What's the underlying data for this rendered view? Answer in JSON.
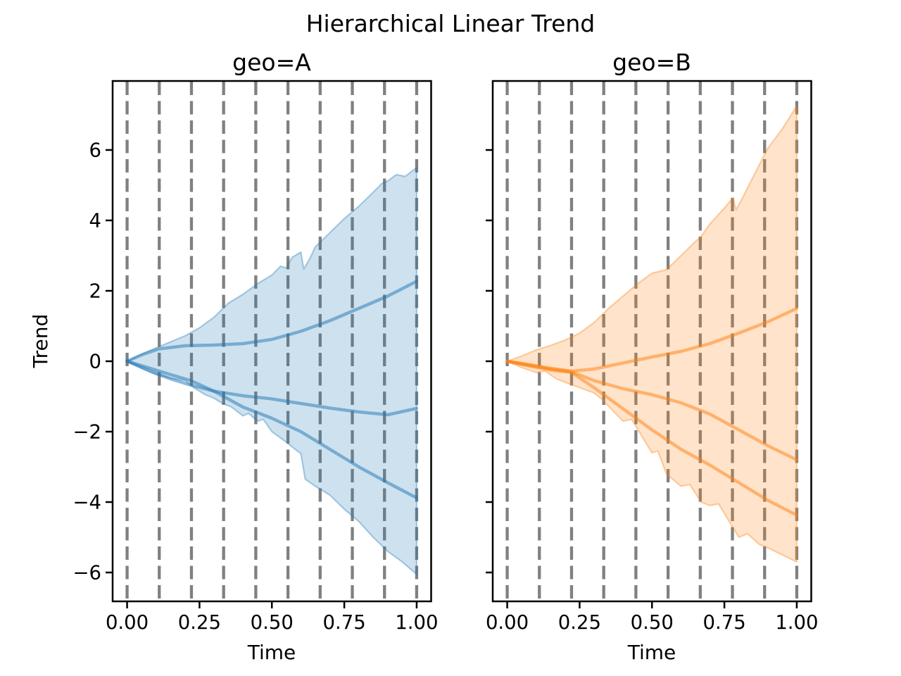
{
  "figure": {
    "suptitle": "Hierarchical Linear Trend",
    "background": "#ffffff",
    "gridline_color": "#808080",
    "text_color": "#000000"
  },
  "chart_data": [
    {
      "type": "area",
      "title": "geo=A",
      "xlabel": "Time",
      "ylabel": "Trend",
      "color": "#1f77b4",
      "xlim": [
        -0.05,
        1.05
      ],
      "ylim": [
        -6.82,
        7.96
      ],
      "xticks": [
        0.0,
        0.25,
        0.5,
        0.75,
        1.0
      ],
      "xtick_labels": [
        "0.00",
        "0.25",
        "0.50",
        "0.75",
        "1.00"
      ],
      "yticks": [
        -6,
        -4,
        -2,
        0,
        2,
        4,
        6
      ],
      "ytick_labels": [
        "−6",
        "−4",
        "−2",
        "0",
        "2",
        "4",
        "6"
      ],
      "show_ytick_labels": true,
      "grid": true,
      "changepoints": [
        0.0,
        0.1111,
        0.2222,
        0.3333,
        0.4444,
        0.5556,
        0.6667,
        0.7778,
        0.8889,
        1.0
      ],
      "band": {
        "upper": [
          [
            0,
            0
          ],
          [
            0.05,
            0.2
          ],
          [
            0.1,
            0.38
          ],
          [
            0.15,
            0.55
          ],
          [
            0.2,
            0.72
          ],
          [
            0.25,
            0.95
          ],
          [
            0.3,
            1.25
          ],
          [
            0.35,
            1.65
          ],
          [
            0.4,
            1.9
          ],
          [
            0.45,
            2.2
          ],
          [
            0.5,
            2.45
          ],
          [
            0.53,
            2.7
          ],
          [
            0.55,
            2.65
          ],
          [
            0.57,
            2.95
          ],
          [
            0.6,
            3.1
          ],
          [
            0.61,
            2.62
          ],
          [
            0.63,
            2.9
          ],
          [
            0.65,
            3.25
          ],
          [
            0.7,
            3.65
          ],
          [
            0.75,
            4.05
          ],
          [
            0.8,
            4.4
          ],
          [
            0.85,
            4.8
          ],
          [
            0.88,
            5.05
          ],
          [
            0.9,
            5.12
          ],
          [
            0.93,
            5.3
          ],
          [
            0.96,
            5.25
          ],
          [
            1,
            5.5
          ]
        ],
        "lower": [
          [
            0,
            0
          ],
          [
            0.05,
            -0.2
          ],
          [
            0.1,
            -0.38
          ],
          [
            0.15,
            -0.48
          ],
          [
            0.2,
            -0.55
          ],
          [
            0.23,
            -0.75
          ],
          [
            0.27,
            -0.95
          ],
          [
            0.3,
            -1.05
          ],
          [
            0.33,
            -1.2
          ],
          [
            0.36,
            -1.3
          ],
          [
            0.4,
            -1.55
          ],
          [
            0.42,
            -1.48
          ],
          [
            0.45,
            -1.7
          ],
          [
            0.47,
            -1.65
          ],
          [
            0.5,
            -2.0
          ],
          [
            0.55,
            -2.3
          ],
          [
            0.58,
            -2.5
          ],
          [
            0.6,
            -2.62
          ],
          [
            0.615,
            -3.35
          ],
          [
            0.65,
            -3.55
          ],
          [
            0.7,
            -3.8
          ],
          [
            0.75,
            -4.2
          ],
          [
            0.8,
            -4.55
          ],
          [
            0.85,
            -5.0
          ],
          [
            0.9,
            -5.4
          ],
          [
            0.95,
            -5.7
          ],
          [
            1,
            -6.05
          ]
        ]
      },
      "lines": [
        [
          [
            0,
            0
          ],
          [
            0.05,
            0.18
          ],
          [
            0.11,
            0.35
          ],
          [
            0.2,
            0.44
          ],
          [
            0.3,
            0.46
          ],
          [
            0.4,
            0.5
          ],
          [
            0.5,
            0.62
          ],
          [
            0.6,
            0.85
          ],
          [
            0.7,
            1.15
          ],
          [
            0.8,
            1.5
          ],
          [
            0.9,
            1.85
          ],
          [
            1,
            2.27
          ]
        ],
        [
          [
            0,
            0
          ],
          [
            0.08,
            -0.28
          ],
          [
            0.15,
            -0.5
          ],
          [
            0.22,
            -0.68
          ],
          [
            0.3,
            -0.85
          ],
          [
            0.4,
            -0.98
          ],
          [
            0.5,
            -1.07
          ],
          [
            0.6,
            -1.2
          ],
          [
            0.7,
            -1.33
          ],
          [
            0.8,
            -1.44
          ],
          [
            0.9,
            -1.52
          ],
          [
            1,
            -1.34
          ]
        ],
        [
          [
            0,
            0
          ],
          [
            0.08,
            -0.2
          ],
          [
            0.15,
            -0.38
          ],
          [
            0.22,
            -0.55
          ],
          [
            0.3,
            -0.85
          ],
          [
            0.4,
            -1.3
          ],
          [
            0.5,
            -1.62
          ],
          [
            0.6,
            -2.0
          ],
          [
            0.7,
            -2.5
          ],
          [
            0.8,
            -3.0
          ],
          [
            0.9,
            -3.45
          ],
          [
            1,
            -3.88
          ]
        ]
      ]
    },
    {
      "type": "area",
      "title": "geo=B",
      "xlabel": "Time",
      "ylabel": "",
      "color": "#ff7f0e",
      "xlim": [
        -0.05,
        1.05
      ],
      "ylim": [
        -6.82,
        7.96
      ],
      "xticks": [
        0.0,
        0.25,
        0.5,
        0.75,
        1.0
      ],
      "xtick_labels": [
        "0.00",
        "0.25",
        "0.50",
        "0.75",
        "1.00"
      ],
      "yticks": [
        -6,
        -4,
        -2,
        0,
        2,
        4,
        6
      ],
      "ytick_labels": [],
      "show_ytick_labels": false,
      "grid": true,
      "changepoints": [
        0.0,
        0.1111,
        0.2222,
        0.3333,
        0.4444,
        0.5556,
        0.6667,
        0.7778,
        0.8889,
        1.0
      ],
      "band": {
        "upper": [
          [
            0,
            0
          ],
          [
            0.05,
            0.15
          ],
          [
            0.1,
            0.32
          ],
          [
            0.15,
            0.45
          ],
          [
            0.2,
            0.6
          ],
          [
            0.25,
            0.8
          ],
          [
            0.3,
            1.1
          ],
          [
            0.35,
            1.5
          ],
          [
            0.4,
            1.85
          ],
          [
            0.45,
            2.2
          ],
          [
            0.5,
            2.5
          ],
          [
            0.55,
            2.6
          ],
          [
            0.6,
            3.0
          ],
          [
            0.65,
            3.4
          ],
          [
            0.67,
            3.55
          ],
          [
            0.7,
            3.9
          ],
          [
            0.75,
            4.35
          ],
          [
            0.78,
            4.65
          ],
          [
            0.79,
            4.3
          ],
          [
            0.81,
            4.6
          ],
          [
            0.85,
            5.25
          ],
          [
            0.9,
            6.05
          ],
          [
            0.95,
            6.6
          ],
          [
            1,
            7.25
          ]
        ],
        "lower": [
          [
            0,
            0
          ],
          [
            0.05,
            -0.18
          ],
          [
            0.1,
            -0.32
          ],
          [
            0.13,
            -0.28
          ],
          [
            0.17,
            -0.5
          ],
          [
            0.2,
            -0.6
          ],
          [
            0.25,
            -0.75
          ],
          [
            0.3,
            -0.9
          ],
          [
            0.33,
            -1.1
          ],
          [
            0.37,
            -1.45
          ],
          [
            0.4,
            -1.7
          ],
          [
            0.43,
            -1.65
          ],
          [
            0.47,
            -2.2
          ],
          [
            0.5,
            -2.6
          ],
          [
            0.52,
            -2.55
          ],
          [
            0.55,
            -3.2
          ],
          [
            0.6,
            -3.55
          ],
          [
            0.63,
            -3.5
          ],
          [
            0.67,
            -4.0
          ],
          [
            0.7,
            -4.1
          ],
          [
            0.73,
            -4.05
          ],
          [
            0.77,
            -4.6
          ],
          [
            0.8,
            -5.0
          ],
          [
            0.83,
            -4.9
          ],
          [
            0.87,
            -5.2
          ],
          [
            0.9,
            -5.3
          ],
          [
            0.95,
            -5.5
          ],
          [
            1,
            -5.7
          ]
        ]
      },
      "lines": [
        [
          [
            0,
            0
          ],
          [
            0.08,
            -0.1
          ],
          [
            0.15,
            -0.2
          ],
          [
            0.222,
            -0.28
          ],
          [
            0.3,
            -0.22
          ],
          [
            0.4,
            -0.05
          ],
          [
            0.5,
            0.12
          ],
          [
            0.6,
            0.28
          ],
          [
            0.7,
            0.5
          ],
          [
            0.8,
            0.8
          ],
          [
            0.9,
            1.12
          ],
          [
            1,
            1.5
          ]
        ],
        [
          [
            0,
            0
          ],
          [
            0.08,
            -0.12
          ],
          [
            0.15,
            -0.22
          ],
          [
            0.222,
            -0.3
          ],
          [
            0.3,
            -0.55
          ],
          [
            0.4,
            -0.78
          ],
          [
            0.5,
            -0.95
          ],
          [
            0.6,
            -1.18
          ],
          [
            0.7,
            -1.5
          ],
          [
            0.8,
            -1.95
          ],
          [
            0.9,
            -2.4
          ],
          [
            1,
            -2.8
          ]
        ],
        [
          [
            0,
            0
          ],
          [
            0.08,
            -0.14
          ],
          [
            0.15,
            -0.25
          ],
          [
            0.222,
            -0.32
          ],
          [
            0.3,
            -0.75
          ],
          [
            0.4,
            -1.35
          ],
          [
            0.5,
            -1.95
          ],
          [
            0.6,
            -2.5
          ],
          [
            0.7,
            -2.95
          ],
          [
            0.8,
            -3.45
          ],
          [
            0.9,
            -3.95
          ],
          [
            1,
            -4.37
          ]
        ]
      ]
    }
  ]
}
